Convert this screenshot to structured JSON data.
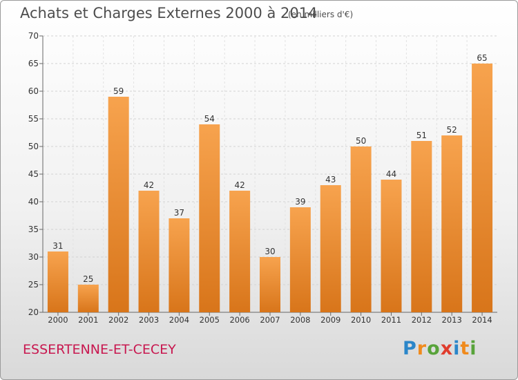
{
  "header": {
    "title": "Achats et Charges Externes 2000 à 2014",
    "subtitle": "(en milliers d'€)"
  },
  "footer": {
    "commune": "ESSERTENNE-ET-CECEY",
    "logo_text": "Proxiti",
    "logo_letters": [
      {
        "char": "P",
        "color": "#2b86c9"
      },
      {
        "char": "r",
        "color": "#f08a1c"
      },
      {
        "char": "o",
        "color": "#58a33a"
      },
      {
        "char": "x",
        "color": "#e03c2d"
      },
      {
        "char": "i",
        "color": "#2b86c9"
      },
      {
        "char": "t",
        "color": "#f08a1c"
      },
      {
        "char": "i",
        "color": "#58a33a"
      }
    ]
  },
  "chart_data": {
    "type": "bar",
    "title": "Achats et Charges Externes 2000 à 2014",
    "subtitle": "(en milliers d'€)",
    "categories": [
      "2000",
      "2001",
      "2002",
      "2003",
      "2004",
      "2005",
      "2006",
      "2007",
      "2008",
      "2009",
      "2010",
      "2011",
      "2012",
      "2013",
      "2014"
    ],
    "values": [
      31,
      25,
      59,
      42,
      37,
      54,
      42,
      30,
      39,
      43,
      50,
      44,
      51,
      52,
      65
    ],
    "ylim": [
      20,
      70
    ],
    "yticks": [
      20,
      25,
      30,
      35,
      40,
      45,
      50,
      55,
      60,
      65,
      70
    ],
    "grid": true,
    "bar_color_top": "#f7a34e",
    "bar_color_bottom": "#d8751a"
  }
}
